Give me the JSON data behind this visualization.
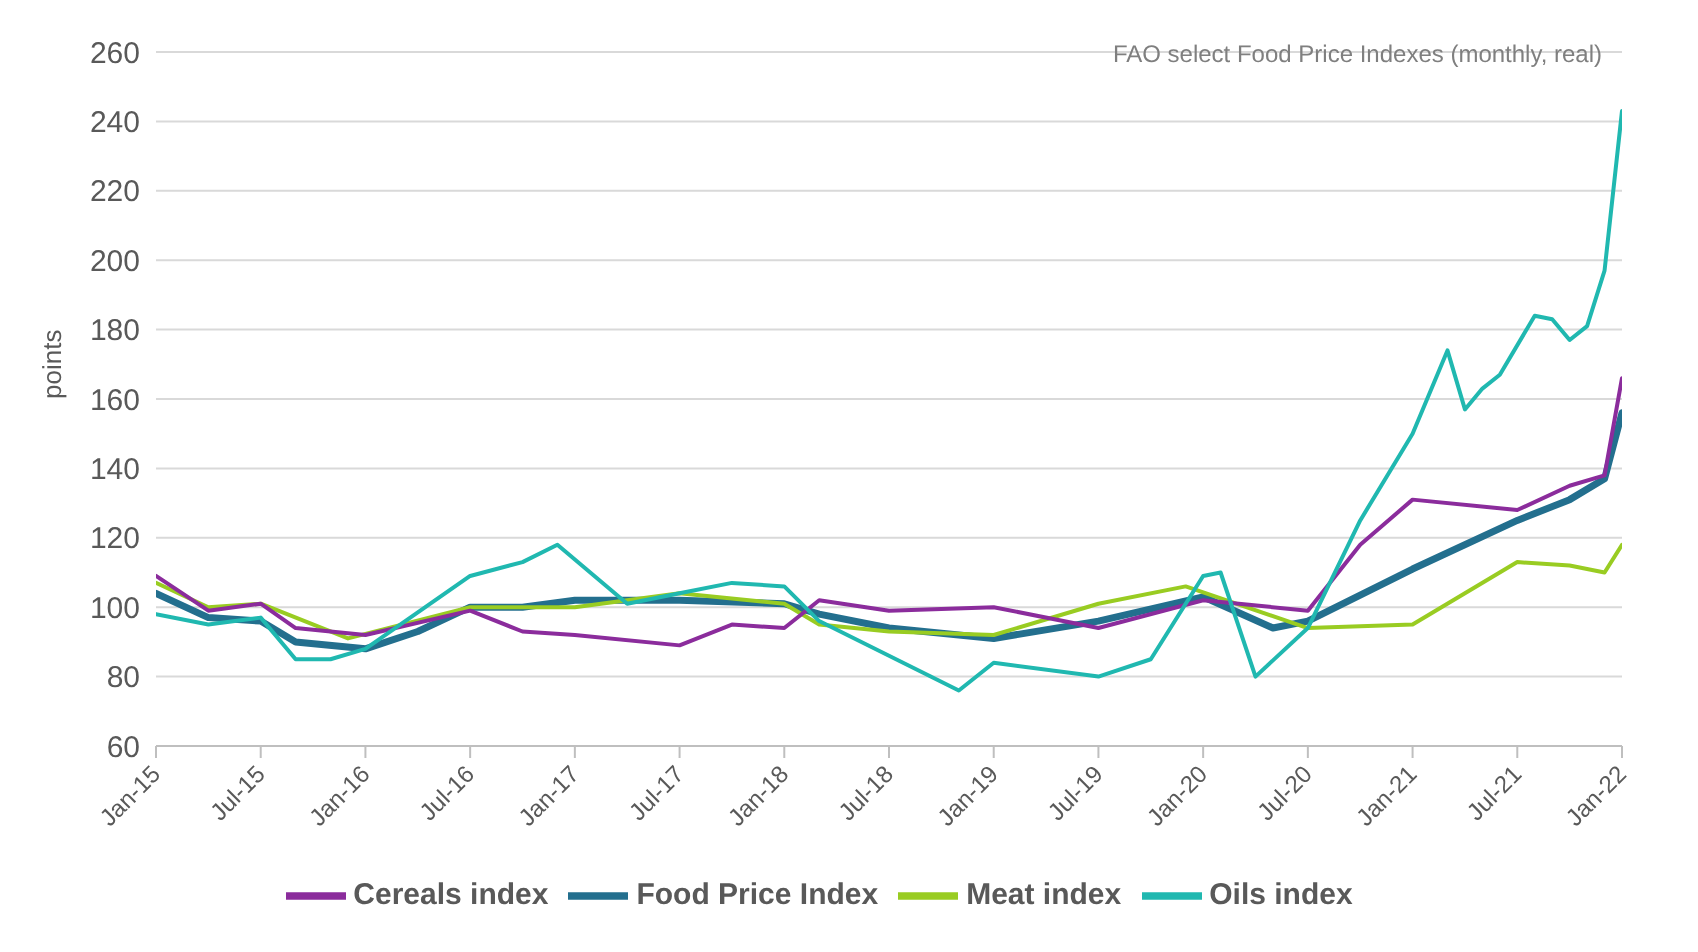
{
  "chart_data": {
    "type": "line",
    "title": "FAO select Food Price Indexes (monthly, real)",
    "ylabel": "points",
    "xlim": [
      "2015-01",
      "2022-01"
    ],
    "xticks": [
      {
        "value": "2015-01",
        "label": "Jan-15"
      },
      {
        "value": "2015-07",
        "label": "Jul-15"
      },
      {
        "value": "2016-01",
        "label": "Jan-16"
      },
      {
        "value": "2016-07",
        "label": "Jul-16"
      },
      {
        "value": "2017-01",
        "label": "Jan-17"
      },
      {
        "value": "2017-07",
        "label": "Jul-17"
      },
      {
        "value": "2018-01",
        "label": "Jan-18"
      },
      {
        "value": "2018-07",
        "label": "Jul-18"
      },
      {
        "value": "2019-01",
        "label": "Jan-19"
      },
      {
        "value": "2019-07",
        "label": "Jul-19"
      },
      {
        "value": "2020-01",
        "label": "Jan-20"
      },
      {
        "value": "2020-07",
        "label": "Jul-20"
      },
      {
        "value": "2021-01",
        "label": "Jan-21"
      },
      {
        "value": "2021-07",
        "label": "Jul-21"
      },
      {
        "value": "2022-01",
        "label": "Jan-22"
      }
    ],
    "ylim": [
      60,
      260
    ],
    "yticks": [
      60,
      80,
      100,
      120,
      140,
      160,
      180,
      200,
      220,
      240,
      260
    ],
    "grid": "y",
    "legend": "bottom",
    "marker": "none",
    "line_style": "solid",
    "series": [
      {
        "name": "Food Price Index",
        "color": "#236f8e",
        "x": [
          "2015-01",
          "2015-04",
          "2015-07",
          "2015-09",
          "2016-01",
          "2016-04",
          "2016-07",
          "2016-10",
          "2017-01",
          "2017-07",
          "2018-01",
          "2018-03",
          "2018-07",
          "2019-01",
          "2019-07",
          "2020-01",
          "2020-05",
          "2020-07",
          "2021-01",
          "2021-07",
          "2021-10",
          "2021-12",
          "2022-01"
        ],
        "values": [
          104,
          97,
          96,
          90,
          88,
          93,
          100,
          100,
          102,
          102,
          101,
          98,
          94,
          91,
          96,
          103,
          94,
          96,
          111,
          125,
          131,
          137,
          156
        ]
      },
      {
        "name": "Meat index",
        "color": "#99cc22",
        "x": [
          "2015-01",
          "2015-04",
          "2015-07",
          "2015-12",
          "2016-07",
          "2017-01",
          "2017-07",
          "2018-01",
          "2018-03",
          "2018-07",
          "2019-01",
          "2019-07",
          "2019-12",
          "2020-07",
          "2021-01",
          "2021-07",
          "2021-10",
          "2021-12",
          "2022-01"
        ],
        "values": [
          107,
          100,
          101,
          91,
          100,
          100,
          104,
          101,
          95,
          93,
          92,
          101,
          106,
          94,
          95,
          113,
          112,
          110,
          118
        ]
      },
      {
        "name": "Cereals index",
        "color": "#8b2c9c",
        "x": [
          "2015-01",
          "2015-04",
          "2015-07",
          "2015-09",
          "2016-01",
          "2016-07",
          "2016-10",
          "2017-01",
          "2017-07",
          "2017-10",
          "2018-01",
          "2018-03",
          "2018-07",
          "2019-01",
          "2019-07",
          "2020-01",
          "2020-07",
          "2020-10",
          "2021-01",
          "2021-07",
          "2021-10",
          "2021-12",
          "2022-01"
        ],
        "values": [
          109,
          99,
          101,
          94,
          92,
          99,
          93,
          92,
          89,
          95,
          94,
          102,
          99,
          100,
          94,
          102,
          99,
          118,
          131,
          128,
          135,
          138,
          166
        ]
      },
      {
        "name": "Oils index",
        "color": "#20b8b0",
        "x": [
          "2015-01",
          "2015-04",
          "2015-07",
          "2015-09",
          "2015-11",
          "2016-01",
          "2016-07",
          "2016-10",
          "2016-12",
          "2017-04",
          "2017-07",
          "2017-10",
          "2018-01",
          "2018-03",
          "2018-07",
          "2018-11",
          "2019-01",
          "2019-07",
          "2019-10",
          "2020-01",
          "2020-02",
          "2020-04",
          "2020-07",
          "2020-10",
          "2021-01",
          "2021-03",
          "2021-04",
          "2021-05",
          "2021-06",
          "2021-08",
          "2021-09",
          "2021-10",
          "2021-11",
          "2021-12",
          "2022-01"
        ],
        "values": [
          98,
          95,
          97,
          85,
          85,
          88,
          109,
          113,
          118,
          101,
          104,
          107,
          106,
          96,
          86,
          76,
          84,
          80,
          85,
          109,
          110,
          80,
          94,
          125,
          150,
          174,
          157,
          163,
          167,
          184,
          183,
          177,
          181,
          197,
          243
        ]
      }
    ]
  }
}
